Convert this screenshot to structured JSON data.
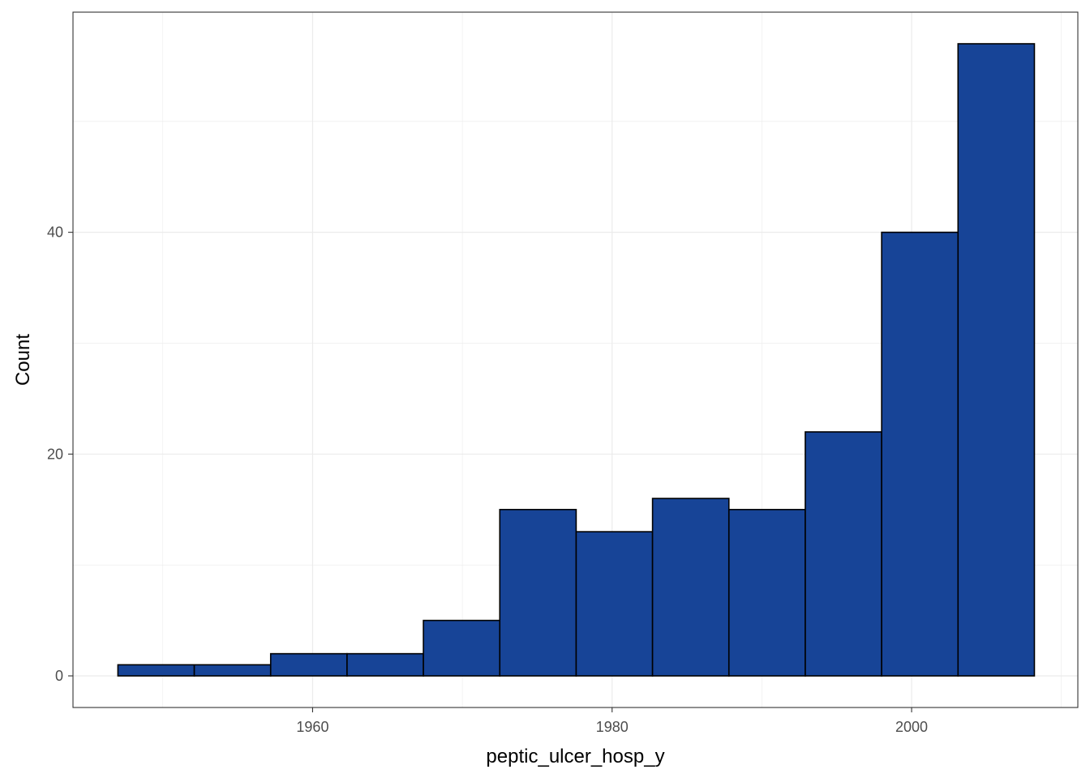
{
  "chart_data": {
    "type": "bar",
    "histogram": true,
    "title": "",
    "xlabel": "peptic_ulcer_hosp_y",
    "ylabel": "Count",
    "bins": [
      {
        "x0": 1947.0,
        "x1": 1952.1,
        "count": 1
      },
      {
        "x0": 1952.1,
        "x1": 1957.2,
        "count": 1
      },
      {
        "x0": 1957.2,
        "x1": 1962.3,
        "count": 2
      },
      {
        "x0": 1962.3,
        "x1": 1967.4,
        "count": 2
      },
      {
        "x0": 1967.4,
        "x1": 1972.5,
        "count": 5
      },
      {
        "x0": 1972.5,
        "x1": 1977.6,
        "count": 15
      },
      {
        "x0": 1977.6,
        "x1": 1982.7,
        "count": 13
      },
      {
        "x0": 1982.7,
        "x1": 1987.8,
        "count": 16
      },
      {
        "x0": 1987.8,
        "x1": 1992.9,
        "count": 15
      },
      {
        "x0": 1992.9,
        "x1": 1998.0,
        "count": 22
      },
      {
        "x0": 1998.0,
        "x1": 2003.1,
        "count": 40
      },
      {
        "x0": 2003.1,
        "x1": 2008.2,
        "count": 57
      }
    ],
    "xlim": [
      1944.0,
      2011.1
    ],
    "ylim": [
      -2.85,
      59.85
    ],
    "x_ticks": [
      1960,
      1980,
      2000
    ],
    "x_tick_labels": [
      "1960",
      "1980",
      "2000"
    ],
    "x_minor_ticks": [
      1950,
      1970,
      1990,
      2010
    ],
    "y_ticks": [
      0,
      20,
      40
    ],
    "y_tick_labels": [
      "0",
      "20",
      "40"
    ],
    "y_minor_ticks": [
      10,
      30,
      50
    ],
    "grid": true,
    "legend": "none",
    "colors": {
      "bar_fill": "#174497",
      "bar_outline": "#000000",
      "grid": "#ebebeb",
      "panel_border": "#333333",
      "tick_label": "#4d4d4d",
      "axis_title": "#000000"
    }
  }
}
